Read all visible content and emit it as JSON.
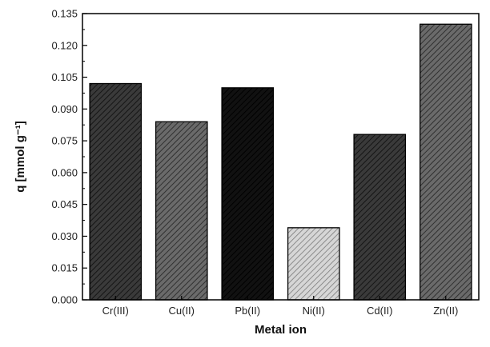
{
  "chart_data": {
    "type": "bar",
    "categories": [
      "Cr(III)",
      "Cu(II)",
      "Pb(II)",
      "Ni(II)",
      "Cd(II)",
      "Zn(II)"
    ],
    "values": [
      0.102,
      0.084,
      0.1,
      0.034,
      0.078,
      0.13
    ],
    "bar_fills": [
      "dark-hatch",
      "medium-hatch",
      "black",
      "light-hatch",
      "dark-hatch",
      "medium-hatch"
    ],
    "colors": {
      "dark-hatch": "#2b2b2b",
      "medium-hatch": "#555555",
      "black": "#0a0a0a",
      "light-hatch": "#bdbdbd",
      "axis": "#000000"
    },
    "xlabel": "Metal ion",
    "ylabel": "q [mmol g⁻¹]",
    "ylim": [
      0,
      0.135
    ],
    "yticks": [
      "0.000",
      "0.015",
      "0.030",
      "0.045",
      "0.060",
      "0.075",
      "0.090",
      "0.105",
      "0.120",
      "0.135"
    ],
    "grid": false,
    "legend": "none"
  }
}
